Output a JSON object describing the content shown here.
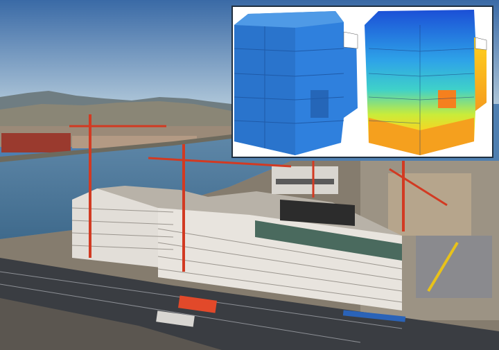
{
  "photo": {
    "subject": "construction-site-photo",
    "colors": {
      "sky_top": "#3d6ea8",
      "sky_bottom": "#a9c2d6",
      "river": "#4d7394",
      "crane": "#d23a22",
      "building_facade": "#e6e2dc",
      "road": "#3a3d42",
      "truck": "#e2492a"
    }
  },
  "inset": {
    "colors": {
      "mesh_blue": "#2f80dd",
      "heat_low": "#1b4fd6",
      "heat_mid": "#3fd1c9",
      "heat_high": "#ffd21e",
      "heat_peak": "#f5801e",
      "background": "#ffffff",
      "border": "#1f2f3f"
    }
  }
}
